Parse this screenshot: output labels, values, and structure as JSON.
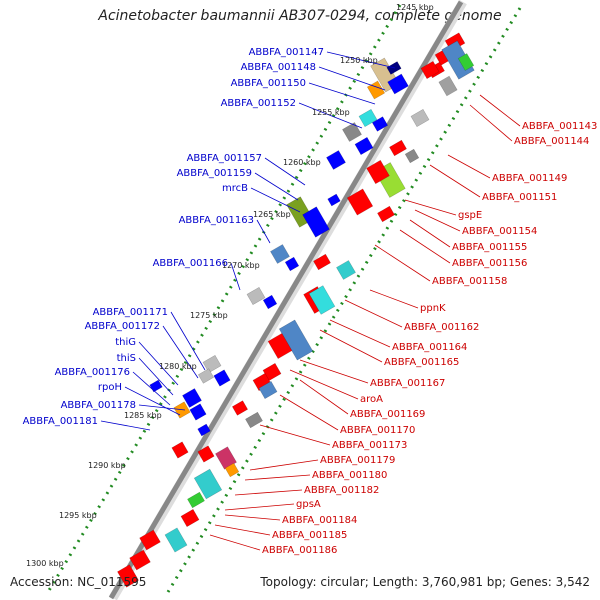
{
  "title": "Acinetobacter baumannii AB307-0294, complete genome",
  "accession": "Accession: NC_011595",
  "topology": "Topology: circular; Length: 3,760,981 bp; Genes: 3,542",
  "colors": {
    "forward_strand": "#ff0000",
    "reverse_strand": "#0000ff",
    "backbone": "#999999",
    "ruler_dots": "#228b22",
    "left_label": "#0000cc",
    "right_label": "#cc0000"
  },
  "kbp_ticks": [
    "1245 kbp",
    "1250 kbp",
    "1255 kbp",
    "1260 kbp",
    "1265 kbp",
    "1270 kbp",
    "1275 kbp",
    "1280 kbp",
    "1285 kbp",
    "1290 kbp",
    "1295 kbp",
    "1300 kbp"
  ],
  "left_labels": [
    "ABBFA_001147",
    "ABBFA_001148",
    "ABBFA_001150",
    "ABBFA_001152",
    "ABBFA_001157",
    "ABBFA_001159",
    "mrcB",
    "ABBFA_001163",
    "ABBFA_001166",
    "ABBFA_001171",
    "ABBFA_001172",
    "thiG",
    "thiS",
    "ABBFA_001176",
    "rpoH",
    "ABBFA_001178",
    "ABBFA_001181"
  ],
  "right_labels": [
    "ABBFA_001143",
    "ABBFA_001144",
    "ABBFA_001149",
    "ABBFA_001151",
    "gspE",
    "ABBFA_001154",
    "ABBFA_001155",
    "ABBFA_001156",
    "ABBFA_001158",
    "ppnK",
    "ABBFA_001162",
    "ABBFA_001164",
    "ABBFA_001165",
    "ABBFA_001167",
    "aroA",
    "ABBFA_001169",
    "ABBFA_001170",
    "ABBFA_001173",
    "ABBFA_001179",
    "ABBFA_001180",
    "ABBFA_001182",
    "gpsA",
    "ABBFA_001184",
    "ABBFA_001185",
    "ABBFA_001186"
  ]
}
